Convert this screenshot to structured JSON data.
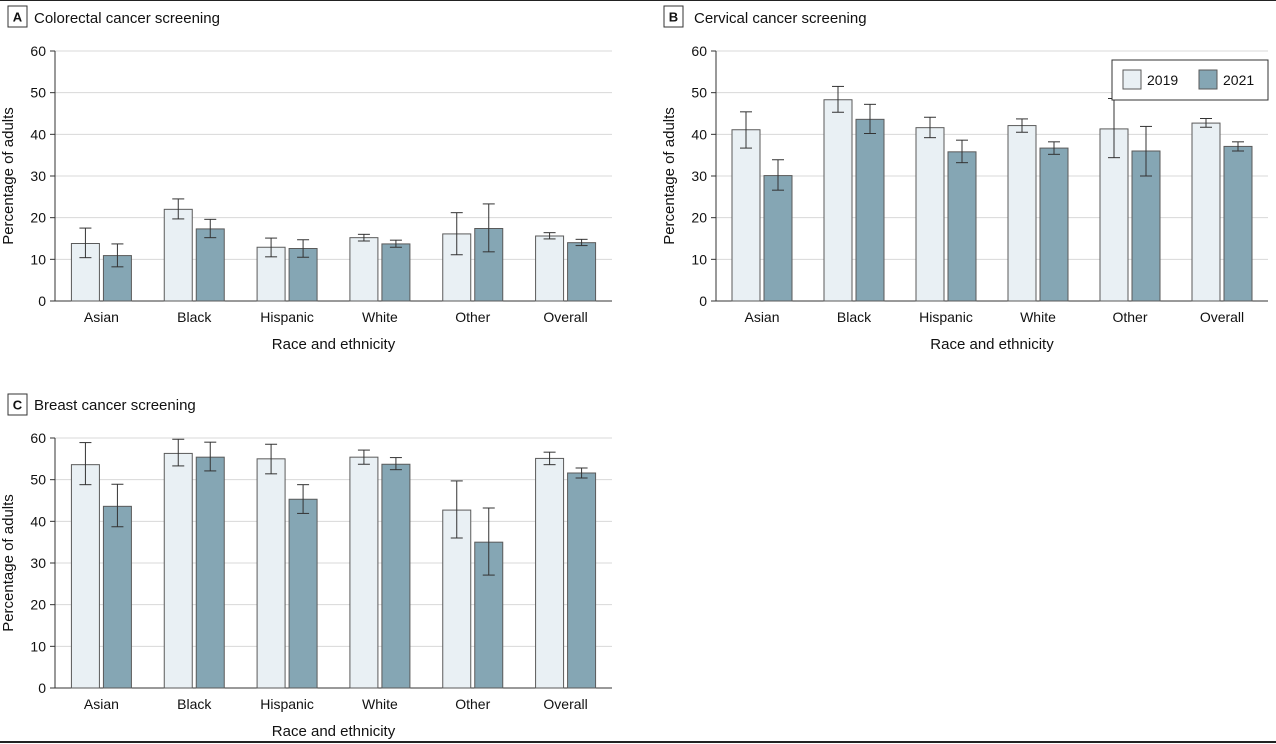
{
  "colors": {
    "2019": "#e9f0f4",
    "2021": "#85a6b4",
    "bar_stroke": "#5a5a5a",
    "grid": "#d8d8d8",
    "axis": "#333333",
    "error_bar": "#333333"
  },
  "legend": {
    "items": [
      "2019",
      "2021"
    ],
    "placement": "top-right of panel B"
  },
  "chart_data": [
    {
      "type": "bar",
      "panel": "A",
      "title": "Colorectal cancer screening",
      "xlabel": "Race and ethnicity",
      "ylabel": "Percentage of adults",
      "ylim": [
        0,
        60
      ],
      "yticks": [
        0,
        10,
        20,
        30,
        40,
        50,
        60
      ],
      "grid": true,
      "categories": [
        "Asian",
        "Black",
        "Hispanic",
        "White",
        "Other",
        "Overall"
      ],
      "series": [
        {
          "name": "2019",
          "values": [
            13.8,
            22.0,
            12.9,
            15.2,
            16.1,
            15.6
          ],
          "err_low": [
            10.4,
            19.7,
            10.6,
            14.4,
            11.1,
            14.9
          ],
          "err_high": [
            17.5,
            24.5,
            15.1,
            16.0,
            21.2,
            16.4
          ]
        },
        {
          "name": "2021",
          "values": [
            10.9,
            17.3,
            12.6,
            13.7,
            17.4,
            14.0
          ],
          "err_low": [
            8.2,
            15.2,
            10.5,
            12.9,
            11.8,
            13.3
          ],
          "err_high": [
            13.7,
            19.6,
            14.7,
            14.6,
            23.3,
            14.8
          ]
        }
      ]
    },
    {
      "type": "bar",
      "panel": "B",
      "title": "Cervical cancer screening",
      "xlabel": "Race and ethnicity",
      "ylabel": "Percentage of adults",
      "ylim": [
        0,
        60
      ],
      "yticks": [
        0,
        10,
        20,
        30,
        40,
        50,
        60
      ],
      "grid": true,
      "categories": [
        "Asian",
        "Black",
        "Hispanic",
        "White",
        "Other",
        "Overall"
      ],
      "series": [
        {
          "name": "2019",
          "values": [
            41.1,
            48.3,
            41.6,
            42.1,
            41.3,
            42.7
          ],
          "err_low": [
            36.7,
            45.3,
            39.2,
            40.5,
            34.4,
            41.7
          ],
          "err_high": [
            45.4,
            51.5,
            44.1,
            43.7,
            48.6,
            43.8
          ]
        },
        {
          "name": "2021",
          "values": [
            30.1,
            43.6,
            35.8,
            36.7,
            36.0,
            37.1
          ],
          "err_low": [
            26.6,
            40.2,
            33.2,
            35.2,
            30.0,
            36.0
          ],
          "err_high": [
            33.9,
            47.2,
            38.6,
            38.2,
            41.9,
            38.2
          ]
        }
      ]
    },
    {
      "type": "bar",
      "panel": "C",
      "title": "Breast cancer screening",
      "xlabel": "Race and ethnicity",
      "ylabel": "Percentage of adults",
      "ylim": [
        0,
        60
      ],
      "yticks": [
        0,
        10,
        20,
        30,
        40,
        50,
        60
      ],
      "grid": true,
      "categories": [
        "Asian",
        "Black",
        "Hispanic",
        "White",
        "Other",
        "Overall"
      ],
      "series": [
        {
          "name": "2019",
          "values": [
            53.6,
            56.3,
            55.0,
            55.4,
            42.7,
            55.1
          ],
          "err_low": [
            48.8,
            53.3,
            51.4,
            53.7,
            36.0,
            53.6
          ],
          "err_high": [
            58.9,
            59.7,
            58.5,
            57.1,
            49.7,
            56.6
          ]
        },
        {
          "name": "2021",
          "values": [
            43.6,
            55.4,
            45.3,
            53.7,
            35.0,
            51.6
          ],
          "err_low": [
            38.7,
            52.1,
            41.9,
            52.4,
            27.1,
            50.4
          ],
          "err_high": [
            48.9,
            59.0,
            48.8,
            55.3,
            43.2,
            52.8
          ]
        }
      ]
    }
  ]
}
